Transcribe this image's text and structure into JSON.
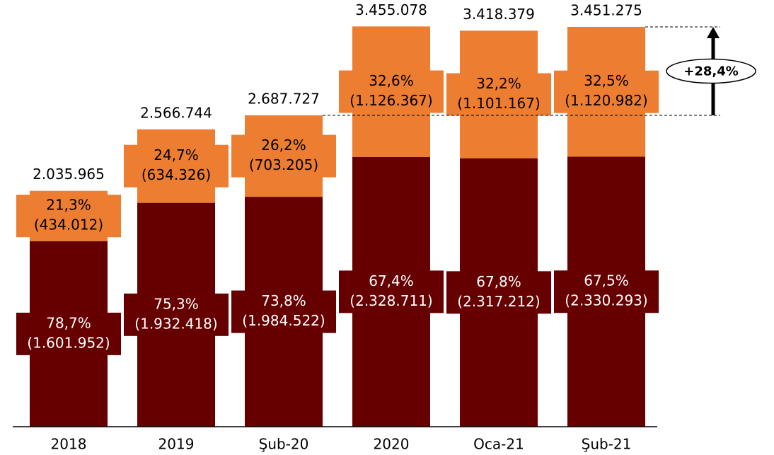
{
  "chart_data": {
    "type": "stacked_bar",
    "categories": [
      "2018",
      "2019",
      "Şub-20",
      "2020",
      "Oca-21",
      "Şub-21"
    ],
    "series": [
      {
        "color": "#660000",
        "values": [
          1601952,
          1932418,
          1984522,
          2328711,
          2317212,
          2330293
        ],
        "percent_labels": [
          "78,7%",
          "75,3%",
          "73,8%",
          "67,4%",
          "67,8%",
          "67,5%"
        ],
        "value_labels": [
          "(1.601.952)",
          "(1.932.418)",
          "(1.984.522)",
          "(2.328.711)",
          "(2.317.212)",
          "(2.330.293)"
        ]
      },
      {
        "color": "#ed7d31",
        "values": [
          434012,
          634326,
          703205,
          1126367,
          1101167,
          1120982
        ],
        "percent_labels": [
          "21,3%",
          "24,7%",
          "26,2%",
          "32,6%",
          "32,2%",
          "32,5%"
        ],
        "value_labels": [
          "(434.012)",
          "(634.326)",
          "(703.205)",
          "(1.126.367)",
          "(1.101.167)",
          "(1.120.982)"
        ]
      }
    ],
    "totals": {
      "values": [
        2035965,
        2566744,
        2687727,
        3455078,
        3418379,
        3451275
      ],
      "value_labels": [
        "2.035.965",
        "2.566.744",
        "2.687.727",
        "3.455.078",
        "3.418.379",
        "3.451.275"
      ]
    },
    "annotation": "+28,4%",
    "ylim": [
      0,
      3500000
    ]
  }
}
